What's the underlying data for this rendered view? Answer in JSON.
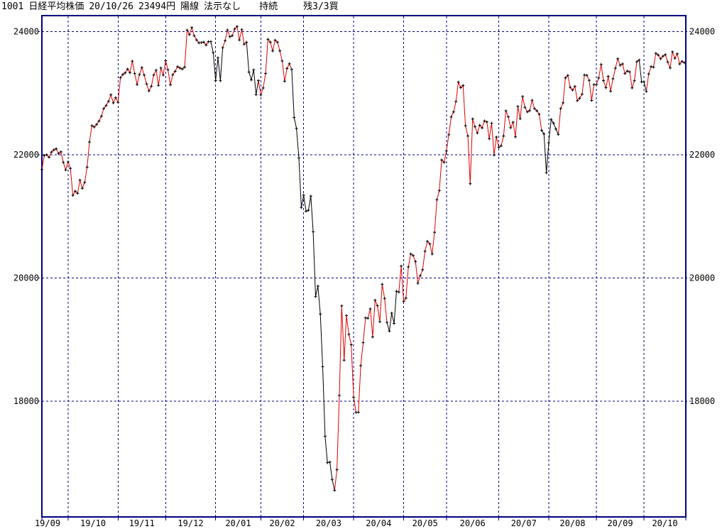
{
  "header": {
    "code": "1001",
    "name": "日経平均株価",
    "date": "20/10/26",
    "price": "23494円",
    "candle": "陽線",
    "signal": "法示なし",
    "status": "持続",
    "position": "残3/3買"
  },
  "colors": {
    "grid": "#000080",
    "border": "#000080",
    "up": "#e00000",
    "down": "#000000",
    "marker": "#000000",
    "background": "#ffffff",
    "text": "#000000"
  },
  "y_axis": {
    "left_labels": [
      "24000",
      "22000",
      "20000",
      "18000"
    ],
    "right_labels": [
      "24000",
      "22000",
      "20000",
      "18000"
    ]
  },
  "chart_data": {
    "type": "line",
    "title": "1001 日経平均株価 20/10/26 23494円 陽線 法示なし 持続 残3/3買",
    "ylabel": "",
    "xlabel": "",
    "ylim": [
      16120,
      24260
    ],
    "yticks": [
      24000,
      22000,
      20000,
      18000
    ],
    "grid": true,
    "legend": "none",
    "marker": "plus",
    "x_month_labels": [
      "19/09",
      "19/10",
      "19/11",
      "19/12",
      "20/01",
      "20/02",
      "20/03",
      "20/04",
      "20/05",
      "20/06",
      "20/07",
      "20/08",
      "20/09",
      "20/10"
    ],
    "month_start_indices": [
      11,
      32,
      52,
      73,
      92,
      110,
      131,
      152,
      170,
      192,
      213,
      233,
      253
    ],
    "last_point": {
      "date": "20/10/26",
      "close": 23494
    },
    "values": [
      21760,
      21988,
      22001,
      21960,
      22044,
      22079,
      22098,
      22020,
      22048,
      21878,
      21756,
      21885,
      21779,
      21342,
      21410,
      21375,
      21587,
      21456,
      21552,
      21799,
      22207,
      22473,
      22451,
      22493,
      22548,
      22625,
      22751,
      22800,
      22867,
      22974,
      22843,
      22927,
      22851,
      23252,
      23304,
      23330,
      23392,
      23332,
      23520,
      23320,
      23141,
      23303,
      23417,
      23293,
      23149,
      23038,
      23113,
      23293,
      23373,
      23126,
      23409,
      23294,
      23529,
      23380,
      23135,
      23300,
      23354,
      23430,
      23410,
      23392,
      23424,
      24023,
      23952,
      24066,
      23934,
      23864,
      23817,
      23821,
      23830,
      23782,
      23838,
      23837,
      23657,
      23205,
      23575,
      23204,
      23740,
      23851,
      24025,
      23917,
      23933,
      24041,
      24084,
      23865,
      24031,
      23795,
      23827,
      23344,
      23216,
      23379,
      22977,
      23205,
      22972,
      23085,
      23320,
      23874,
      23828,
      23686,
      23861,
      23828,
      23688,
      23523,
      23194,
      23401,
      23479,
      23387,
      22605,
      22426,
      21948,
      21143,
      21344,
      21083,
      21100,
      21329,
      20750,
      19699,
      19867,
      19416,
      18560,
      17431,
      17002,
      17011,
      16727,
      16553,
      16888,
      18092,
      19547,
      18665,
      19389,
      19085,
      18917,
      18065,
      17819,
      17820,
      18576,
      18950,
      19353,
      19346,
      19499,
      19043,
      19639,
      19550,
      19291,
      19897,
      19669,
      19280,
      19138,
      19429,
      19262,
      19783,
      19771,
      20194,
      19619,
      19675,
      20180,
      20391,
      20366,
      20267,
      19915,
      20037,
      20134,
      20433,
      20595,
      20552,
      20388,
      20741,
      21271,
      21419,
      21916,
      21878,
      22062,
      22326,
      22614,
      22696,
      22864,
      23178,
      23091,
      23125,
      22473,
      22305,
      21531,
      22582,
      22456,
      22355,
      22479,
      22437,
      22549,
      22534,
      22260,
      22512,
      21995,
      22288,
      22122,
      22146,
      22306,
      22714,
      22615,
      22439,
      22529,
      22291,
      22785,
      22587,
      22946,
      22770,
      22696,
      22717,
      22884,
      22751,
      22715,
      22657,
      22397,
      22339,
      21710,
      22195,
      22573,
      22514,
      22418,
      22330,
      22750,
      22843,
      23249,
      23289,
      23096,
      23051,
      23111,
      22880,
      22920,
      22985,
      23296,
      23290,
      23208,
      22882,
      23140,
      23138,
      23247,
      23466,
      23205,
      23089,
      23274,
      23033,
      23235,
      23406,
      23559,
      23454,
      23475,
      23319,
      23360,
      23346,
      23087,
      23204,
      23511,
      23539,
      23185,
      23185,
      23029,
      23312,
      23433,
      23422,
      23647,
      23620,
      23559,
      23601,
      23627,
      23507,
      23411,
      23671,
      23567,
      23639,
      23474,
      23517,
      23494
    ],
    "color_runs": [
      [
        0,
        71,
        "up"
      ],
      [
        71,
        76,
        "down"
      ],
      [
        76,
        86,
        "up"
      ],
      [
        86,
        91,
        "down"
      ],
      [
        91,
        105,
        "up"
      ],
      [
        105,
        123,
        "down"
      ],
      [
        123,
        145,
        "up"
      ],
      [
        145,
        150,
        "down"
      ],
      [
        150,
        210,
        "up"
      ],
      [
        210,
        217,
        "down"
      ],
      [
        217,
        251,
        "up"
      ],
      [
        251,
        254,
        "down"
      ],
      [
        254,
        270,
        "up"
      ]
    ]
  }
}
